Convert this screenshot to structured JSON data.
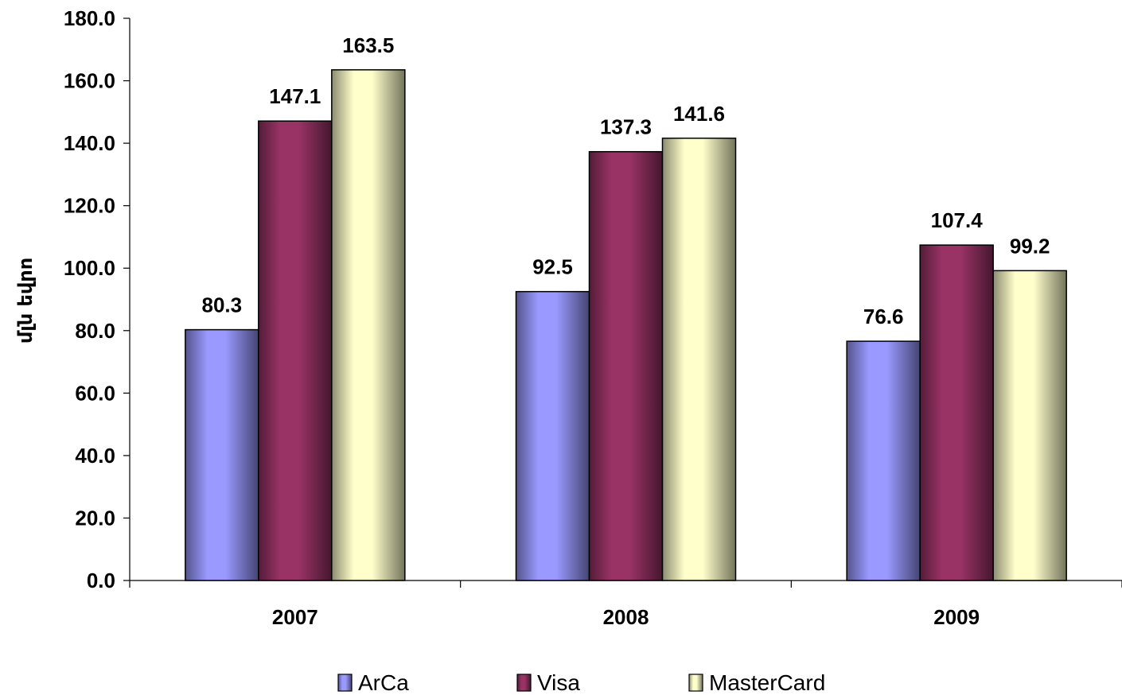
{
  "chart_data": {
    "type": "bar",
    "categories": [
      "2007",
      "2008",
      "2009"
    ],
    "series": [
      {
        "name": "ArCa",
        "values": [
          80.3,
          92.5,
          76.6
        ],
        "color": "#9999ff"
      },
      {
        "name": "Visa",
        "values": [
          147.1,
          137.3,
          107.4
        ],
        "color": "#993366"
      },
      {
        "name": "MasterCard",
        "values": [
          163.5,
          141.6,
          99.2
        ],
        "color": "#ffffcc"
      }
    ],
    "data_labels": [
      [
        "80.3",
        "92.5",
        "76.6"
      ],
      [
        "147.1",
        "137.3",
        "107.4"
      ],
      [
        "163.5",
        "141.6",
        "99.2"
      ]
    ],
    "title": "",
    "xlabel": "",
    "ylabel": "մլն եվրո",
    "ylim": [
      0,
      180
    ],
    "yticks": [
      "0.0",
      "20.0",
      "40.0",
      "60.0",
      "80.0",
      "100.0",
      "120.0",
      "140.0",
      "160.0",
      "180.0"
    ],
    "grid": false,
    "legend": "bottom"
  }
}
